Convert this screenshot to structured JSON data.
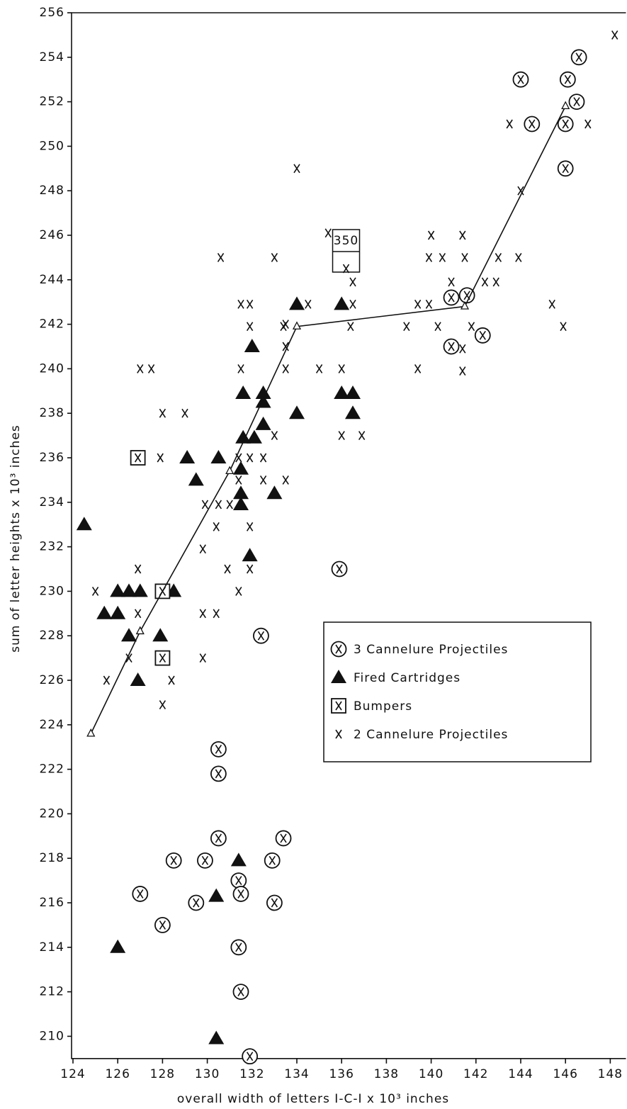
{
  "chart_data": {
    "type": "scatter",
    "xlabel": "overall width of letters I-C-I x 10³ inches",
    "ylabel": "sum of letter heights x 10³ inches",
    "annotation": "350",
    "xlim": [
      124,
      148.7
    ],
    "ylim": [
      209,
      256
    ],
    "xticks": [
      124,
      126,
      128,
      130,
      132,
      134,
      136,
      138,
      140,
      142,
      144,
      146,
      148
    ],
    "yticks": [
      210,
      212,
      214,
      216,
      218,
      220,
      222,
      224,
      226,
      228,
      230,
      232,
      234,
      236,
      238,
      240,
      242,
      244,
      246,
      248,
      250,
      252,
      254,
      256
    ],
    "legend": "center right",
    "series": [
      {
        "name": "3 Cannelure Projectiles",
        "marker": "circled-x",
        "color": "#111111",
        "x": [
          146.6,
          144.0,
          146.1,
          146.5,
          144.5,
          146.0,
          146.0,
          140.9,
          141.6,
          140.9,
          142.3,
          135.9,
          132.4,
          130.5,
          130.5,
          130.5,
          133.4,
          128.5,
          129.9,
          132.9,
          131.4,
          131.5,
          127.0,
          129.5,
          133.0,
          128.0,
          131.4,
          131.5,
          131.9
        ],
        "values": [
          254.0,
          253.0,
          253.0,
          252.0,
          251.0,
          251.0,
          249.0,
          243.2,
          243.3,
          241.0,
          241.5,
          231.0,
          228.0,
          222.9,
          221.8,
          218.9,
          218.9,
          217.9,
          217.9,
          217.9,
          217.0,
          216.4,
          216.4,
          216.0,
          216.0,
          215.0,
          214.0,
          212.0,
          209.1
        ]
      },
      {
        "name": "Fired Cartridges",
        "marker": "triangle",
        "color": "#111111",
        "x": [
          124.5,
          125.4,
          126.0,
          126.0,
          126.5,
          127.0,
          128.5,
          126.5,
          127.9,
          126.9,
          126.0,
          129.1,
          129.5,
          130.5,
          131.5,
          131.5,
          131.5,
          131.9,
          133.0,
          132.5,
          132.5,
          131.6,
          132.1,
          131.6,
          132.5,
          132.0,
          134.0,
          134.0,
          136.0,
          136.0,
          136.5,
          136.5,
          131.4,
          130.4,
          130.4
        ],
        "values": [
          233.0,
          229.0,
          229.0,
          230.0,
          230.0,
          230.0,
          230.0,
          228.0,
          228.0,
          226.0,
          214.0,
          236.0,
          235.0,
          236.0,
          235.5,
          234.4,
          233.9,
          231.6,
          234.4,
          238.5,
          237.5,
          236.9,
          236.9,
          238.9,
          238.9,
          241.0,
          242.9,
          238.0,
          242.9,
          238.9,
          238.9,
          238.0,
          217.9,
          216.3,
          209.9
        ]
      },
      {
        "name": "Bumpers",
        "marker": "boxed-x",
        "color": "#111111",
        "x": [
          126.9,
          128.0,
          128.0
        ],
        "values": [
          236.0,
          230.0,
          227.0
        ]
      },
      {
        "name": "2 Cannelure Projectiles",
        "marker": "x",
        "color": "#111111",
        "x": [
          148.2,
          143.5,
          147.0,
          144.0,
          134.0,
          135.4,
          140.0,
          141.4,
          130.6,
          133.0,
          139.9,
          140.5,
          141.5,
          143.0,
          143.9,
          136.2,
          136.5,
          140.9,
          142.4,
          142.9,
          131.5,
          131.9,
          134.5,
          136.5,
          139.4,
          139.9,
          145.4,
          131.9,
          133.4,
          133.5,
          136.4,
          138.9,
          140.3,
          141.8,
          145.9,
          133.5,
          141.4,
          127.0,
          127.5,
          131.5,
          133.5,
          135.0,
          136.0,
          139.4,
          141.4,
          128.0,
          129.0,
          133.0,
          136.0,
          136.9,
          127.9,
          131.4,
          131.9,
          132.5,
          131.4,
          132.5,
          133.5,
          129.9,
          130.5,
          131.0,
          130.4,
          131.9,
          129.8,
          126.9,
          130.9,
          131.9,
          125.0,
          131.4,
          126.9,
          129.8,
          130.4,
          126.5,
          129.8,
          125.5,
          128.4,
          128.0
        ],
        "values": [
          255.0,
          251.0,
          251.0,
          248.0,
          249.0,
          246.1,
          246.0,
          246.0,
          245.0,
          245.0,
          245.0,
          245.0,
          245.0,
          245.0,
          245.0,
          244.5,
          243.9,
          243.9,
          243.9,
          243.9,
          242.9,
          242.9,
          242.9,
          242.9,
          242.9,
          242.9,
          242.9,
          241.9,
          241.9,
          242.0,
          241.9,
          241.9,
          241.9,
          241.9,
          241.9,
          241.0,
          240.9,
          240.0,
          240.0,
          240.0,
          240.0,
          240.0,
          240.0,
          240.0,
          239.9,
          238.0,
          238.0,
          237.0,
          237.0,
          237.0,
          236.0,
          236.0,
          236.0,
          236.0,
          235.0,
          235.0,
          235.0,
          233.9,
          233.9,
          233.9,
          232.9,
          232.9,
          231.9,
          231.0,
          231.0,
          231.0,
          230.0,
          230.0,
          229.0,
          229.0,
          229.0,
          227.0,
          227.0,
          226.0,
          226.0,
          224.9
        ]
      },
      {
        "marker": "open-triangle-line",
        "color": "#111111",
        "x": [
          124.8,
          127.0,
          131.0,
          134.0,
          141.5,
          146.0
        ],
        "values": [
          223.6,
          228.2,
          235.4,
          241.9,
          242.8,
          251.8
        ]
      }
    ]
  }
}
